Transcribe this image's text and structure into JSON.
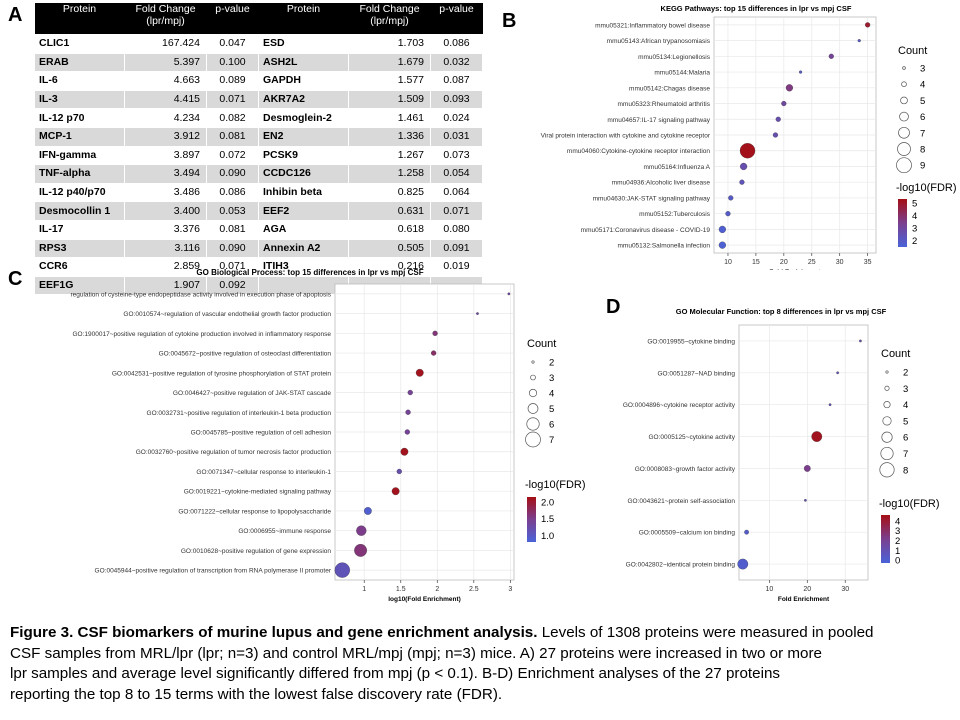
{
  "panel_labels": {
    "a": "A",
    "b": "B",
    "c": "C",
    "d": "D"
  },
  "table": {
    "headers": [
      "Protein",
      "Fold Change (lpr/mpj)",
      "p-value",
      "Protein",
      "Fold Change (lpr/mpj)",
      "p-value"
    ],
    "rows": [
      [
        "CLIC1",
        "167.424",
        "0.047",
        "ESD",
        "1.703",
        "0.086"
      ],
      [
        "ERAB",
        "5.397",
        "0.100",
        "ASH2L",
        "1.679",
        "0.032"
      ],
      [
        "IL-6",
        "4.663",
        "0.089",
        "GAPDH",
        "1.577",
        "0.087"
      ],
      [
        "IL-3",
        "4.415",
        "0.071",
        "AKR7A2",
        "1.509",
        "0.093"
      ],
      [
        "IL-12 p70",
        "4.234",
        "0.082",
        "Desmoglein-2",
        "1.461",
        "0.024"
      ],
      [
        "MCP-1",
        "3.912",
        "0.081",
        "EN2",
        "1.336",
        "0.031"
      ],
      [
        "IFN-gamma",
        "3.897",
        "0.072",
        "PCSK9",
        "1.267",
        "0.073"
      ],
      [
        "TNF-alpha",
        "3.494",
        "0.090",
        "CCDC126",
        "1.258",
        "0.054"
      ],
      [
        "IL-12 p40/p70",
        "3.486",
        "0.086",
        "Inhibin beta",
        "0.825",
        "0.064"
      ],
      [
        "Desmocollin 1",
        "3.400",
        "0.053",
        "EEF2",
        "0.631",
        "0.071"
      ],
      [
        "IL-17",
        "3.376",
        "0.081",
        "AGA",
        "0.618",
        "0.080"
      ],
      [
        "RPS3",
        "3.116",
        "0.090",
        "Annexin A2",
        "0.505",
        "0.091"
      ],
      [
        "CCR6",
        "2.859",
        "0.071",
        "ITIH3",
        "0.216",
        "0.019"
      ],
      [
        "EEF1G",
        "1.907",
        "0.092",
        "",
        "",
        ""
      ]
    ]
  },
  "chart_data": [
    {
      "id": "B",
      "type": "scatter",
      "title": "KEGG Pathways: top 15 differences in lpr vs mpj CSF",
      "xlabel": "Fold Enrichment",
      "xlim": [
        7.5,
        36.5
      ],
      "xticks": [
        10,
        15,
        20,
        25,
        30,
        35
      ],
      "size_legend": {
        "title": "Count",
        "values": [
          3,
          4,
          5,
          6,
          7,
          8,
          9
        ]
      },
      "color_legend": {
        "title": "-log10(FDR)",
        "ticks": [
          5,
          4,
          3,
          2
        ],
        "range": [
          1.5,
          5.3
        ]
      },
      "points": [
        {
          "term": "mmu05321:Inflammatory bowel disease",
          "x": 35.0,
          "count": 4,
          "color": 4.9
        },
        {
          "term": "mmu05143:African trypanosomiasis",
          "x": 33.5,
          "count": 3,
          "color": 2.0
        },
        {
          "term": "mmu05134:Legionellosis",
          "x": 28.5,
          "count": 4,
          "color": 3.2
        },
        {
          "term": "mmu05144:Malaria",
          "x": 23.0,
          "count": 3,
          "color": 2.0
        },
        {
          "term": "mmu05142:Chagas disease",
          "x": 21.0,
          "count": 5,
          "color": 3.6
        },
        {
          "term": "mmu05323:Rheumatoid arthritis",
          "x": 20.0,
          "count": 4,
          "color": 3.0
        },
        {
          "term": "mmu04657:IL-17 signaling pathway",
          "x": 19.0,
          "count": 4,
          "color": 2.6
        },
        {
          "term": "Viral protein interaction with cytokine and cytokine receptor",
          "x": 18.5,
          "count": 4,
          "color": 2.6
        },
        {
          "term": "mmu04060:Cytokine-cytokine receptor interaction",
          "x": 13.5,
          "count": 9,
          "color": 5.2
        },
        {
          "term": "mmu05164:Influenza A",
          "x": 12.8,
          "count": 5,
          "color": 2.6
        },
        {
          "term": "mmu04936:Alcoholic liver disease",
          "x": 12.5,
          "count": 4,
          "color": 2.3
        },
        {
          "term": "mmu04630:JAK-STAT signaling pathway",
          "x": 10.5,
          "count": 4,
          "color": 2.0
        },
        {
          "term": "mmu05152:Tuberculosis",
          "x": 10.0,
          "count": 4,
          "color": 1.9
        },
        {
          "term": "mmu05171:Coronavirus disease - COVID-19",
          "x": 9.0,
          "count": 5,
          "color": 1.7
        },
        {
          "term": "mmu05132:Salmonella infection",
          "x": 9.0,
          "count": 5,
          "color": 1.6
        }
      ]
    },
    {
      "id": "C",
      "type": "scatter",
      "title": "GO Biological Process: top 15 differences in lpr vs mpj CSF",
      "xlabel": "log10(Fold Enrichment)",
      "xlim": [
        0.6,
        3.05
      ],
      "xticks": [
        1.0,
        1.5,
        2.0,
        2.5,
        3.0
      ],
      "size_legend": {
        "title": "Count",
        "values": [
          2,
          3,
          4,
          5,
          6,
          7
        ]
      },
      "color_legend": {
        "title": "-log10(FDR)",
        "ticks": [
          2.0,
          1.5,
          1.0
        ],
        "range": [
          0.8,
          2.15
        ]
      },
      "points": [
        {
          "term": "regulation of cysteine-type endopeptidase activity involved in execution phase of apoptosis",
          "x": 2.98,
          "count": 2,
          "color": 1.3
        },
        {
          "term": "GO:0010574~regulation of vascular endothelial growth factor production",
          "x": 2.55,
          "count": 2,
          "color": 1.3
        },
        {
          "term": "GO:1900017~positive regulation of cytokine production involved in inflammatory response",
          "x": 1.97,
          "count": 3,
          "color": 1.6
        },
        {
          "term": "GO:0045672~positive regulation of osteoclast differentiation",
          "x": 1.95,
          "count": 3,
          "color": 1.7
        },
        {
          "term": "GO:0042531~positive regulation of tyrosine phosphorylation of STAT protein",
          "x": 1.76,
          "count": 4,
          "color": 2.1
        },
        {
          "term": "GO:0046427~positive regulation of JAK-STAT cascade",
          "x": 1.63,
          "count": 3,
          "color": 1.4
        },
        {
          "term": "GO:0032731~positive regulation of interleukin-1 beta production",
          "x": 1.6,
          "count": 3,
          "color": 1.4
        },
        {
          "term": "GO:0045785~positive regulation of cell adhesion",
          "x": 1.59,
          "count": 3,
          "color": 1.4
        },
        {
          "term": "GO:0032760~positive regulation of tumor necrosis factor production",
          "x": 1.55,
          "count": 4,
          "color": 2.1
        },
        {
          "term": "GO:0071347~cellular response to interleukin-1",
          "x": 1.48,
          "count": 3,
          "color": 1.2
        },
        {
          "term": "GO:0019221~cytokine-mediated signaling pathway",
          "x": 1.43,
          "count": 4,
          "color": 2.1
        },
        {
          "term": "GO:0071222~cellular response to lipopolysaccharide",
          "x": 1.05,
          "count": 4,
          "color": 0.9
        },
        {
          "term": "GO:0006955~immune response",
          "x": 0.96,
          "count": 5,
          "color": 1.5
        },
        {
          "term": "GO:0010628~positive regulation of gene expression",
          "x": 0.95,
          "count": 6,
          "color": 1.6
        },
        {
          "term": "GO:0045944~positive regulation of transcription from RNA polymerase II promoter",
          "x": 0.7,
          "count": 7,
          "color": 1.1
        }
      ]
    },
    {
      "id": "D",
      "type": "scatter",
      "title": "GO Molecular Function: top 8 differences in lpr vs mpj CSF",
      "xlabel": "Fold Enrichment",
      "xlim": [
        2,
        36
      ],
      "xticks": [
        10,
        20,
        30
      ],
      "size_legend": {
        "title": "Count",
        "values": [
          2,
          3,
          4,
          5,
          6,
          7,
          8
        ]
      },
      "color_legend": {
        "title": "-log10(FDR)",
        "ticks": [
          4,
          3,
          2,
          1,
          0
        ],
        "range": [
          -0.3,
          4.6
        ]
      },
      "points": [
        {
          "term": "GO:0019955~cytokine binding",
          "x": 34.0,
          "count": 2,
          "color": 1.2
        },
        {
          "term": "GO:0051287~NAD binding",
          "x": 28.0,
          "count": 2,
          "color": 1.0
        },
        {
          "term": "GO:0004896~cytokine receptor activity",
          "x": 26.0,
          "count": 2,
          "color": 1.0
        },
        {
          "term": "GO:0005125~cytokine activity",
          "x": 22.5,
          "count": 6,
          "color": 4.4
        },
        {
          "term": "GO:0008083~growth factor activity",
          "x": 20.0,
          "count": 4,
          "color": 2.2
        },
        {
          "term": "GO:0043621~protein self-association",
          "x": 19.5,
          "count": 2,
          "color": 1.0
        },
        {
          "term": "GO:0005509~calcium ion binding",
          "x": 4.0,
          "count": 3,
          "color": 0.2
        },
        {
          "term": "GO:0042802~identical protein binding",
          "x": 3.0,
          "count": 6,
          "color": 0.1
        }
      ]
    }
  ],
  "caption": {
    "bold": "Figure 3. CSF biomarkers of murine lupus and gene enrichment analysis.",
    "line1": " Levels of 1308 proteins were measured in pooled",
    "line2": "CSF samples from MRL/lpr (lpr; n=3) and control MRL/mpj (mpj; n=3) mice. A) 27 proteins were increased in two or more",
    "line3": "lpr samples and average level significantly differed from mpj (p < 0.1). B-D) Enrichment analyses of the 27 proteins",
    "line4": "reporting the top 8 to 15 terms with the lowest false discovery rate (FDR)."
  },
  "colors": {
    "low": "#4a63d9",
    "mid": "#7a3f8f",
    "high": "#a50f15",
    "panel_bg": "#ffffff",
    "grid": "#e8e8e8"
  }
}
